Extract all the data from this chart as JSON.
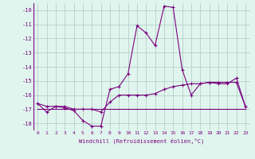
{
  "xlabel": "Windchill (Refroidissement éolien,°C)",
  "x_values": [
    0,
    1,
    2,
    3,
    4,
    5,
    6,
    7,
    8,
    9,
    10,
    11,
    12,
    13,
    14,
    15,
    16,
    17,
    18,
    19,
    20,
    21,
    22,
    23
  ],
  "line1_y": [
    -16.6,
    -17.2,
    -16.8,
    -16.9,
    -17.1,
    -17.8,
    -18.2,
    -18.2,
    -15.6,
    -15.4,
    -14.5,
    -11.1,
    -11.6,
    -12.5,
    -9.7,
    -9.8,
    -14.2,
    -16.0,
    -15.2,
    -15.1,
    -15.2,
    -15.2,
    -14.8,
    -16.8
  ],
  "line2_y": [
    -17.0,
    -17.0,
    -17.0,
    -17.0,
    -17.0,
    -17.0,
    -17.0,
    -17.0,
    -17.0,
    -17.0,
    -17.0,
    -17.0,
    -17.0,
    -17.0,
    -17.0,
    -17.0,
    -17.0,
    -17.0,
    -17.0,
    -17.0,
    -17.0,
    -17.0,
    -17.0,
    -17.0
  ],
  "line3_y": [
    -16.6,
    -16.8,
    -16.8,
    -16.8,
    -17.0,
    -17.0,
    -17.0,
    -17.2,
    -16.5,
    -16.0,
    -16.0,
    -16.0,
    -16.0,
    -15.9,
    -15.6,
    -15.4,
    -15.3,
    -15.2,
    -15.2,
    -15.1,
    -15.1,
    -15.1,
    -15.1,
    -16.8
  ],
  "ylim": [
    -18.5,
    -9.5
  ],
  "xlim": [
    -0.5,
    23.5
  ],
  "yticks": [
    -10,
    -11,
    -12,
    -13,
    -14,
    -15,
    -16,
    -17,
    -18
  ],
  "xticks": [
    0,
    1,
    2,
    3,
    4,
    5,
    6,
    7,
    8,
    9,
    10,
    11,
    12,
    13,
    14,
    15,
    16,
    17,
    18,
    19,
    20,
    21,
    22,
    23
  ],
  "line_color": "#7b0080",
  "bg_color": "#dff5ee",
  "grid_color": "#adc8c0",
  "marker": "+"
}
